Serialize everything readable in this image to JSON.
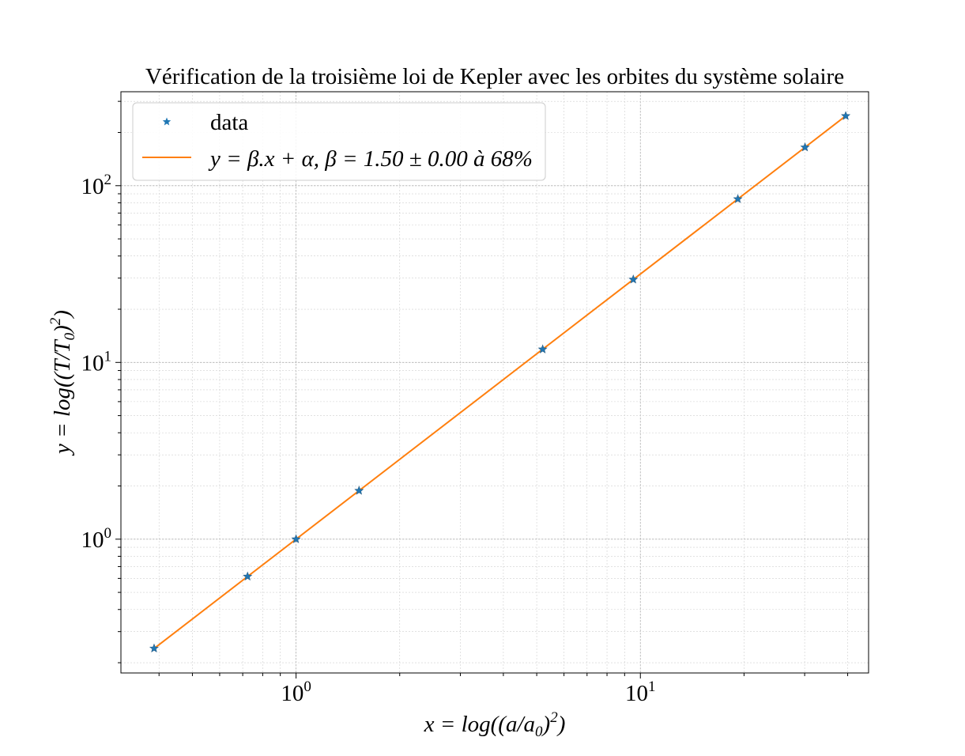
{
  "chart_data": {
    "type": "scatter",
    "title": "Vérification de la troisième loi de Kepler avec les orbites du système solaire",
    "xlabel": {
      "pre": "x = log((a/a",
      "sub": "0",
      "mid": ")",
      "sup": "2",
      "post": ")"
    },
    "ylabel": {
      "pre": "y = log((T/T",
      "sub": "0",
      "mid": ")",
      "sup": "2",
      "post": ")"
    },
    "xscale": "log",
    "yscale": "log",
    "xlim": [
      0.31,
      46
    ],
    "ylim": [
      0.175,
      340
    ],
    "grid": true,
    "legend": "upper-left",
    "xticks": [
      {
        "value": 1,
        "base": "10",
        "exp": "0"
      },
      {
        "value": 10,
        "base": "10",
        "exp": "1"
      }
    ],
    "yticks": [
      {
        "value": 1,
        "base": "10",
        "exp": "0"
      },
      {
        "value": 10,
        "base": "10",
        "exp": "1"
      },
      {
        "value": 100,
        "base": "10",
        "exp": "2"
      }
    ],
    "series": [
      {
        "name": "data",
        "kind": "scatter",
        "marker": "star",
        "color": "#1f77b4",
        "x": [
          0.387,
          0.723,
          1.0,
          1.524,
          5.203,
          9.537,
          19.19,
          30.07,
          39.48
        ],
        "y": [
          0.241,
          0.615,
          1.0,
          1.881,
          11.86,
          29.46,
          84.01,
          164.8,
          248.0
        ]
      },
      {
        "name": "y = β.x + α, β = 1.50 ± 0.00 à 68%",
        "kind": "line",
        "color": "#ff7f0e",
        "slope": 1.5,
        "intercept": 0.0,
        "x_range": [
          0.387,
          39.48
        ]
      }
    ]
  }
}
